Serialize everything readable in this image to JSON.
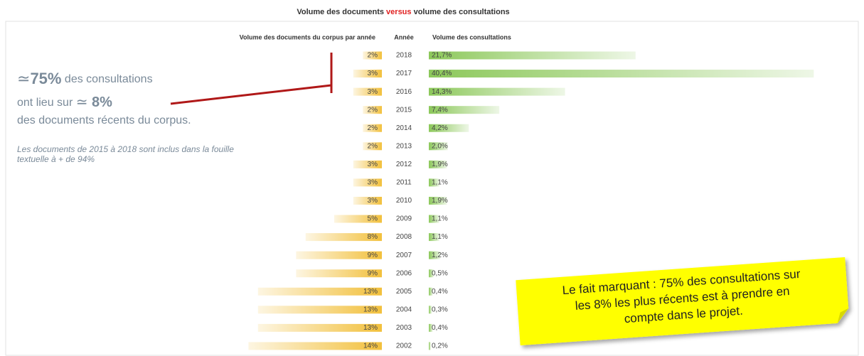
{
  "chart_data": {
    "type": "butterfly",
    "title": {
      "before": "Volume des documents ",
      "emphasis": "versus",
      "after": " volume des consultations"
    },
    "category_label": "Année",
    "categories": [
      "2018",
      "2017",
      "2016",
      "2015",
      "2014",
      "2013",
      "2012",
      "2011",
      "2010",
      "2009",
      "2008",
      "2007",
      "2006",
      "2005",
      "2004",
      "2003",
      "2002"
    ],
    "series": [
      {
        "name": "Volume des documents du corpus par année",
        "color": "#f2c03c",
        "values": [
          2,
          3,
          3,
          2,
          2,
          2,
          3,
          3,
          3,
          5,
          8,
          9,
          9,
          13,
          13,
          13,
          14
        ],
        "value_labels": [
          "2%",
          "3%",
          "3%",
          "2%",
          "2%",
          "2%",
          "3%",
          "3%",
          "3%",
          "5%",
          "8%",
          "9%",
          "9%",
          "13%",
          "13%",
          "13%",
          "14%"
        ]
      },
      {
        "name": "Volume des consultations",
        "color": "#8cc85a",
        "values": [
          21.7,
          40.4,
          14.3,
          7.4,
          4.2,
          2.0,
          1.9,
          1.1,
          1.9,
          1.1,
          1.1,
          1.2,
          0.5,
          0.4,
          0.3,
          0.4,
          0.2
        ],
        "value_labels": [
          "21,7%",
          "40,4%",
          "14,3%",
          "7,4%",
          "4,2%",
          "2,0%",
          "1,9%",
          "1,1%",
          "1,9%",
          "1,1%",
          "1,1%",
          "1,2%",
          "0,5%",
          "0,4%",
          "0,3%",
          "0,4%",
          "0,2%"
        ]
      }
    ],
    "annotation": {
      "line1": [
        "≃",
        "75%",
        " des consultations"
      ],
      "line2": [
        "ont lieu sur ",
        "≃",
        " 8%"
      ],
      "line3": "des documents récents du corpus.",
      "note": [
        "Les  documents de 2015 à 2018 sont inclus dans la fouille",
        "textuelle à + de 94%"
      ]
    },
    "callout": [
      "Le fait marquant : 75% des consultations sur",
      "les 8% les plus récents est à prendre en",
      "compte dans le projet."
    ]
  }
}
